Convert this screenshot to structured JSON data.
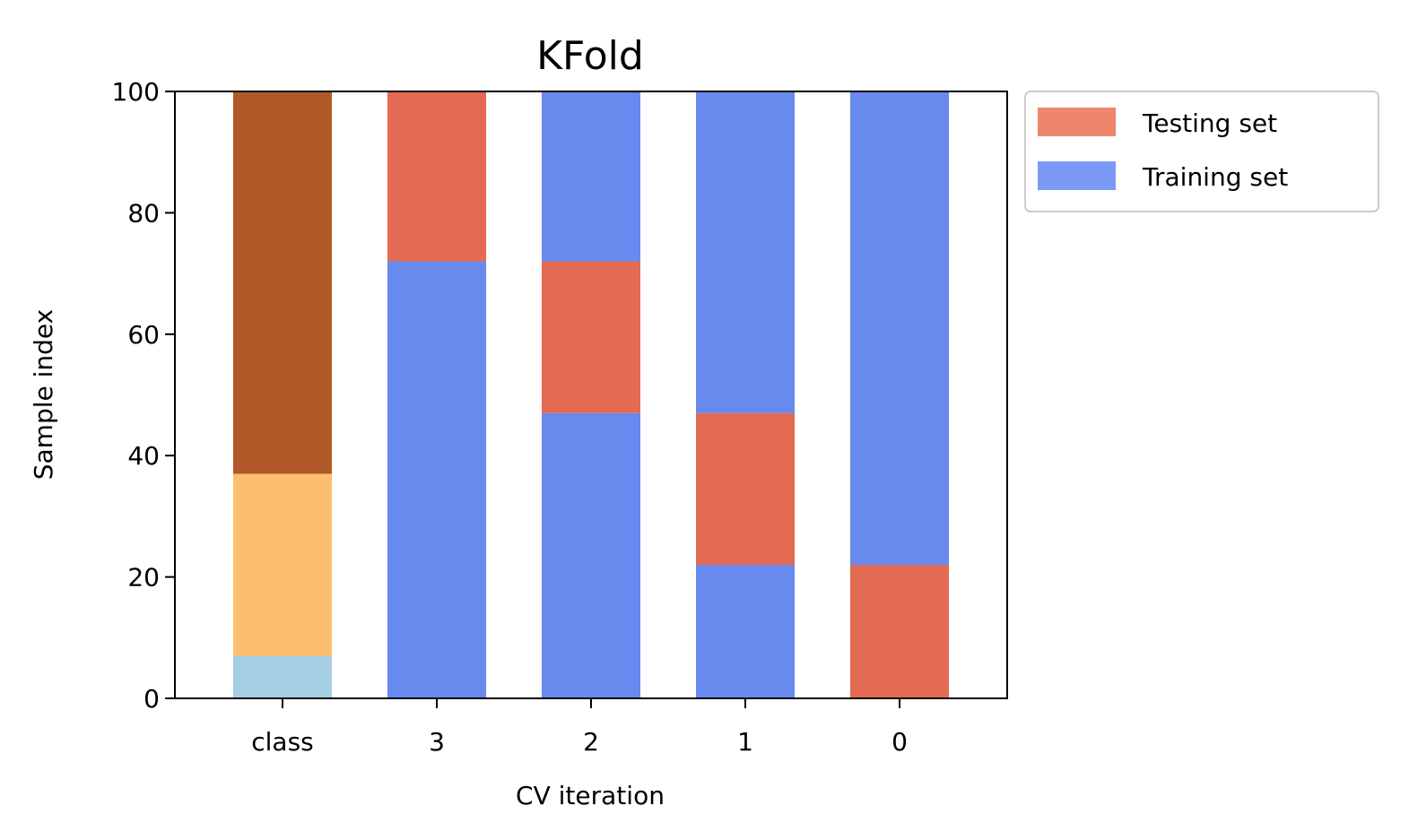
{
  "chart_data": {
    "type": "bar",
    "title": "KFold",
    "xlabel": "CV iteration",
    "ylabel": "Sample index",
    "ylim": [
      0,
      100
    ],
    "yticks": [
      0,
      20,
      40,
      60,
      80,
      100
    ],
    "categories": [
      "class",
      "3",
      "2",
      "1",
      "0"
    ],
    "grid": false,
    "legend_position": "outside-top-right",
    "legend": [
      {
        "label": "Testing set",
        "color": "#ef856d"
      },
      {
        "label": "Training set",
        "color": "#7a9af5"
      }
    ],
    "stacks": [
      {
        "category": "class",
        "segments": [
          {
            "from": 0,
            "to": 7,
            "color": "#a6cee3"
          },
          {
            "from": 7,
            "to": 37,
            "color": "#fdbf6f"
          },
          {
            "from": 37,
            "to": 100,
            "color": "#b15928"
          }
        ]
      },
      {
        "category": "3",
        "segments": [
          {
            "from": 0,
            "to": 72,
            "color": "#6889ee",
            "set": "Training set"
          },
          {
            "from": 72,
            "to": 100,
            "color": "#e36a53",
            "set": "Testing set"
          }
        ]
      },
      {
        "category": "2",
        "segments": [
          {
            "from": 0,
            "to": 47,
            "color": "#6889ee",
            "set": "Training set"
          },
          {
            "from": 47,
            "to": 72,
            "color": "#e36a53",
            "set": "Testing set"
          },
          {
            "from": 72,
            "to": 100,
            "color": "#6889ee",
            "set": "Training set"
          }
        ]
      },
      {
        "category": "1",
        "segments": [
          {
            "from": 0,
            "to": 22,
            "color": "#6889ee",
            "set": "Training set"
          },
          {
            "from": 22,
            "to": 47,
            "color": "#e36a53",
            "set": "Testing set"
          },
          {
            "from": 47,
            "to": 100,
            "color": "#6889ee",
            "set": "Training set"
          }
        ]
      },
      {
        "category": "0",
        "segments": [
          {
            "from": 0,
            "to": 22,
            "color": "#e36a53",
            "set": "Testing set"
          },
          {
            "from": 22,
            "to": 100,
            "color": "#6889ee",
            "set": "Training set"
          }
        ]
      }
    ]
  }
}
